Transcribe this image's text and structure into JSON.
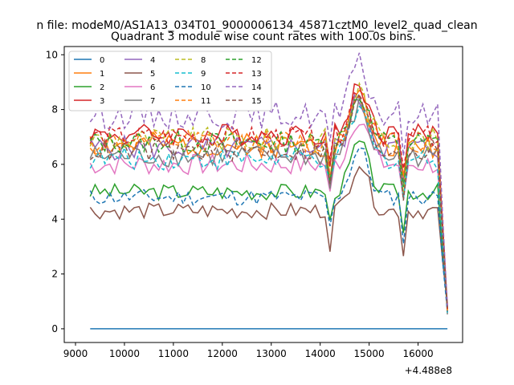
{
  "page_title": "n file: modeM0/AS1A13_034T01_9000006134_45871cztM0_level2_quad_clean",
  "chart_data": {
    "type": "line",
    "title": "Quadrant 3 module wise count rates with 100.0s bins.",
    "xlabel": "",
    "ylabel": "",
    "x_offset_label": "+4.488e8",
    "x_tick_labels": [
      "9000",
      "10000",
      "11000",
      "12000",
      "13000",
      "14000",
      "15000",
      "16000"
    ],
    "x_ticks": [
      9000,
      10000,
      11000,
      12000,
      13000,
      14000,
      15000,
      16000
    ],
    "y_tick_labels": [
      "0",
      "2",
      "4",
      "6",
      "8",
      "10"
    ],
    "y_ticks": [
      0,
      2,
      4,
      6,
      8,
      10
    ],
    "xlim": [
      8770,
      16910
    ],
    "ylim": [
      -0.5,
      10.3
    ],
    "grid": false,
    "legend_position": "top-left",
    "legend_columns": 4,
    "x_start": 9300,
    "x_step": 100,
    "series": [
      {
        "name": "0",
        "color": "#1f77b4",
        "dash": "solid",
        "base": 0.0,
        "amp": 0.0,
        "seed": 1
      },
      {
        "name": "1",
        "color": "#ff7f0e",
        "dash": "solid",
        "base": 6.7,
        "amp": 0.45,
        "seed": 2
      },
      {
        "name": "2",
        "color": "#2ca02c",
        "dash": "solid",
        "base": 5.0,
        "amp": 0.3,
        "seed": 3
      },
      {
        "name": "3",
        "color": "#d62728",
        "dash": "solid",
        "base": 7.1,
        "amp": 0.4,
        "seed": 4
      },
      {
        "name": "4",
        "color": "#9467bd",
        "dash": "solid",
        "base": 6.6,
        "amp": 0.45,
        "seed": 5
      },
      {
        "name": "5",
        "color": "#8c564b",
        "dash": "solid",
        "base": 4.3,
        "amp": 0.3,
        "seed": 6
      },
      {
        "name": "6",
        "color": "#e377c2",
        "dash": "solid",
        "base": 6.0,
        "amp": 0.4,
        "seed": 7
      },
      {
        "name": "7",
        "color": "#7f7f7f",
        "dash": "solid",
        "base": 6.3,
        "amp": 0.4,
        "seed": 8
      },
      {
        "name": "8",
        "color": "#bcbd22",
        "dash": "dashed",
        "base": 6.9,
        "amp": 0.45,
        "seed": 9
      },
      {
        "name": "9",
        "color": "#17becf",
        "dash": "dashed",
        "base": 6.2,
        "amp": 0.4,
        "seed": 10
      },
      {
        "name": "10",
        "color": "#1f77b4",
        "dash": "dashed",
        "base": 4.8,
        "amp": 0.3,
        "seed": 11
      },
      {
        "name": "11",
        "color": "#ff7f0e",
        "dash": "dashed",
        "base": 6.8,
        "amp": 0.45,
        "seed": 12
      },
      {
        "name": "12",
        "color": "#2ca02c",
        "dash": "dashed",
        "base": 6.8,
        "amp": 0.4,
        "seed": 13
      },
      {
        "name": "13",
        "color": "#d62728",
        "dash": "dashed",
        "base": 7.0,
        "amp": 0.4,
        "seed": 14
      },
      {
        "name": "14",
        "color": "#9467bd",
        "dash": "dashed",
        "base": 7.8,
        "amp": 0.5,
        "seed": 15
      },
      {
        "name": "15",
        "color": "#8c564b",
        "dash": "dashed",
        "base": 6.5,
        "amp": 0.4,
        "seed": 16
      }
    ]
  }
}
